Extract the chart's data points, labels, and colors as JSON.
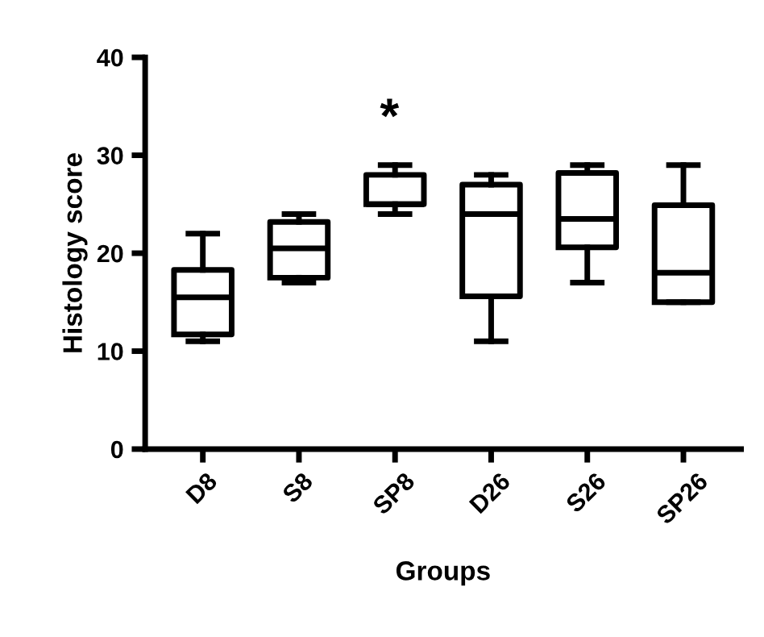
{
  "chart_data": {
    "type": "box",
    "xlabel": "Groups",
    "ylabel": "Histology score",
    "categories": [
      "D8",
      "S8",
      "SP8",
      "D26",
      "S26",
      "SP26"
    ],
    "boxes": [
      {
        "low": 11,
        "q1": 11.7,
        "median": 15.5,
        "q3": 18.3,
        "high": 22
      },
      {
        "low": 17,
        "q1": 17.5,
        "median": 20.5,
        "q3": 23.2,
        "high": 24
      },
      {
        "low": 24,
        "q1": 25,
        "median": 25,
        "q3": 28,
        "high": 29
      },
      {
        "low": 11,
        "q1": 15.6,
        "median": 24,
        "q3": 27,
        "high": 28
      },
      {
        "low": 17,
        "q1": 20.6,
        "median": 23.5,
        "q3": 28.2,
        "high": 29
      },
      {
        "low": 15,
        "q1": 15,
        "median": 18,
        "q3": 24.9,
        "high": 29
      }
    ],
    "color": "#000000",
    "ylim": [
      0,
      40
    ],
    "yticks": [
      0,
      10,
      20,
      30,
      40
    ],
    "annotations": [
      "*"
    ]
  }
}
